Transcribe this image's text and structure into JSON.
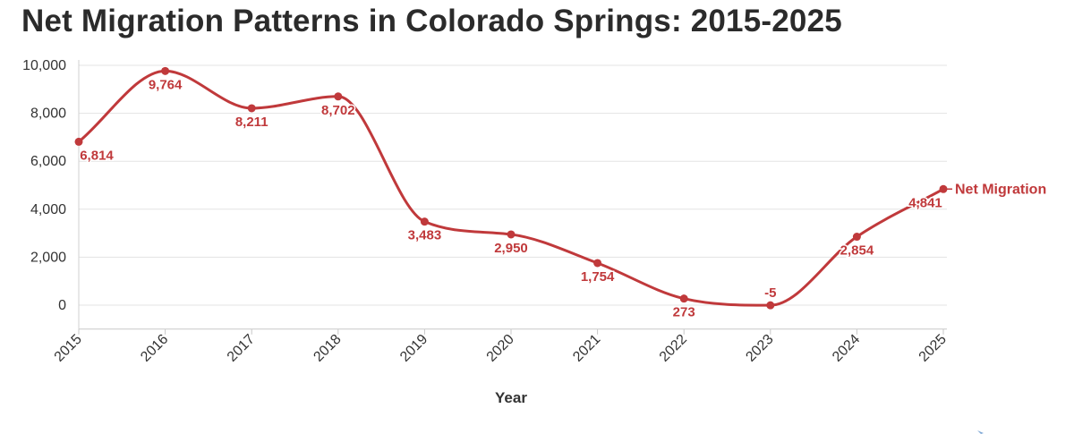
{
  "chart_data": {
    "type": "line",
    "title": "Net Migration Patterns in Colorado Springs: 2015-2025",
    "xlabel": "Year",
    "ylabel": "",
    "x": [
      "2015",
      "2016",
      "2017",
      "2018",
      "2019",
      "2020",
      "2021",
      "2022",
      "2023",
      "2024",
      "2025"
    ],
    "series": [
      {
        "name": "Net Migration",
        "color": "#c0393b",
        "values": [
          6814,
          9764,
          8211,
          8702,
          3483,
          2950,
          1754,
          273,
          -5,
          2854,
          4841
        ],
        "labels": [
          "6,814",
          "9,764",
          "8,211",
          "8,702",
          "3,483",
          "2,950",
          "1,754",
          "273",
          "-5",
          "2,854",
          "4,841"
        ]
      }
    ],
    "ylim": [
      -1000,
      10000
    ],
    "yticks": [
      0,
      2000,
      4000,
      6000,
      8000,
      10000
    ],
    "ytick_labels": [
      "0",
      "2,000",
      "4,000",
      "6,000",
      "8,000",
      "10,000"
    ],
    "grid": true,
    "legend": "none",
    "series_label_placement": "end-of-line"
  }
}
